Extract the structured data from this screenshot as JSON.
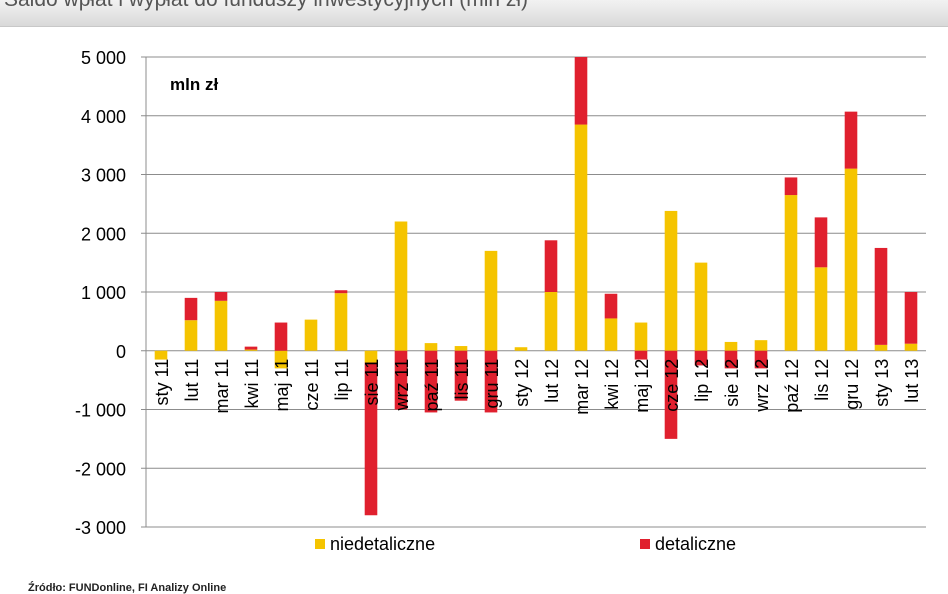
{
  "header": {
    "title": "Saldo wpłat i wypłat do funduszy inwestycyjnych (mln zł)"
  },
  "source": "Źródło: FUNDonline, FI Analizy Online",
  "chart_data": {
    "type": "bar",
    "stacked": true,
    "unit_label": "mln zł",
    "ylim": [
      -3000,
      5000
    ],
    "yticks": [
      -3000,
      -2000,
      -1000,
      0,
      1000,
      2000,
      3000,
      4000,
      5000
    ],
    "ytick_labels": [
      "-3 000",
      "-2 000",
      "-1 000",
      "0",
      "1 000",
      "2 000",
      "3 000",
      "4 000",
      "5 000"
    ],
    "grid": true,
    "legend_position": "bottom",
    "categories": [
      "sty 11",
      "lut 11",
      "mar 11",
      "kwi 11",
      "maj 11",
      "cze 11",
      "lip 11",
      "sie 11",
      "wrz 11",
      "paź 11",
      "lis 11",
      "gru 11",
      "sty 12",
      "lut 12",
      "mar 12",
      "kwi 12",
      "maj 12",
      "cze 12",
      "lip 12",
      "sie 12",
      "wrz 12",
      "paź 12",
      "lis 12",
      "gru 12",
      "sty 13",
      "lut 13"
    ],
    "series": [
      {
        "name": "niedetaliczne",
        "color": "#f5c400",
        "values": [
          -150,
          520,
          850,
          20,
          -300,
          530,
          980,
          -200,
          2200,
          130,
          80,
          1700,
          60,
          1000,
          3850,
          550,
          480,
          2380,
          1500,
          150,
          180,
          2650,
          1420,
          3100,
          100,
          120
        ]
      },
      {
        "name": "detaliczne",
        "color": "#e0202e",
        "values": [
          0,
          380,
          150,
          50,
          480,
          0,
          50,
          -2600,
          -1000,
          -1050,
          -850,
          -1050,
          0,
          880,
          1150,
          420,
          -150,
          -1500,
          -250,
          -300,
          -300,
          300,
          850,
          970,
          1650,
          880
        ]
      }
    ]
  }
}
